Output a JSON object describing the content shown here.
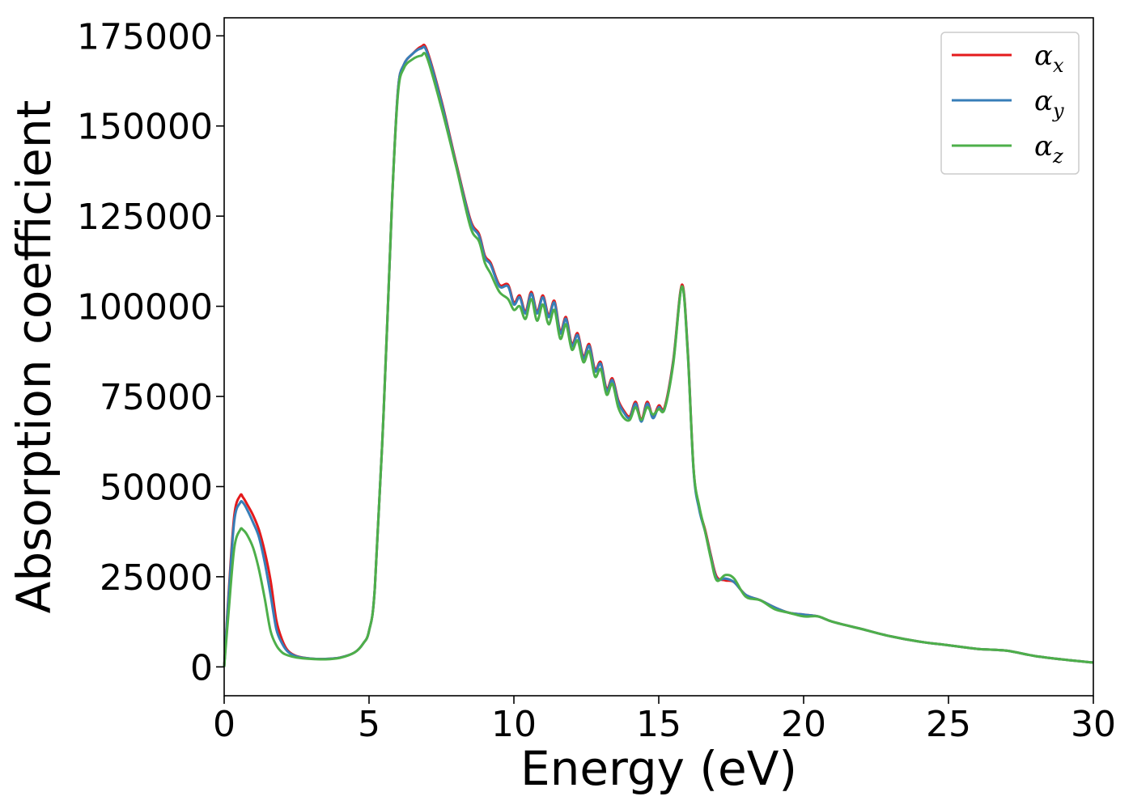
{
  "chart_data": {
    "type": "line",
    "xlabel": "Energy (eV)",
    "ylabel": "Absorption coefficient",
    "xlim": [
      0,
      30
    ],
    "ylim": [
      -8000,
      180000
    ],
    "xticks": [
      0,
      5,
      10,
      15,
      20,
      25,
      30
    ],
    "xtick_labels": [
      "0",
      "5",
      "10",
      "15",
      "20",
      "25",
      "30"
    ],
    "yticks": [
      0,
      25000,
      50000,
      75000,
      100000,
      125000,
      150000,
      175000
    ],
    "ytick_labels": [
      "0",
      "25000",
      "50000",
      "75000",
      "100000",
      "125000",
      "150000",
      "175000"
    ],
    "grid": false,
    "legend_position": "top-right",
    "series": [
      {
        "name": "α",
        "subscript": "x",
        "color": "#e41a1c",
        "x": [
          0,
          0.15,
          0.35,
          0.55,
          0.65,
          0.8,
          1.0,
          1.2,
          1.4,
          1.6,
          1.8,
          2.0,
          2.2,
          2.5,
          3.0,
          3.5,
          4.0,
          4.5,
          4.8,
          5.0,
          5.2,
          5.5,
          5.8,
          6.0,
          6.2,
          6.5,
          6.8,
          7.0,
          7.5,
          8.0,
          8.5,
          8.8,
          9.0,
          9.2,
          9.5,
          9.8,
          10.0,
          10.2,
          10.4,
          10.6,
          10.8,
          11.0,
          11.2,
          11.4,
          11.6,
          11.8,
          12.0,
          12.2,
          12.4,
          12.6,
          12.8,
          13.0,
          13.2,
          13.4,
          13.6,
          13.8,
          14.0,
          14.2,
          14.4,
          14.6,
          14.8,
          15.0,
          15.2,
          15.5,
          15.8,
          16.0,
          16.2,
          16.4,
          16.6,
          16.8,
          17.0,
          17.3,
          17.6,
          18.0,
          18.5,
          19.0,
          19.5,
          20.0,
          20.5,
          21.0,
          22.0,
          23.0,
          24.0,
          25.0,
          26.0,
          27.0,
          28.0,
          29.0,
          30.0
        ],
        "y": [
          0,
          20000,
          42000,
          47500,
          47000,
          45000,
          42000,
          38000,
          32000,
          24000,
          13000,
          7500,
          4500,
          3000,
          2300,
          2200,
          2600,
          4000,
          6500,
          10000,
          22000,
          70000,
          130000,
          160000,
          167000,
          170000,
          172000,
          171000,
          157000,
          140000,
          124000,
          120000,
          114000,
          112000,
          106000,
          106000,
          101000,
          103000,
          98500,
          104000,
          98500,
          103000,
          97500,
          101500,
          93000,
          97000,
          89500,
          92500,
          86000,
          89500,
          82500,
          84500,
          77000,
          80000,
          74000,
          71000,
          69500,
          73500,
          68500,
          73500,
          69500,
          72500,
          72000,
          85000,
          106000,
          88000,
          55000,
          44000,
          38000,
          31000,
          25000,
          24000,
          23500,
          20000,
          18500,
          16500,
          15000,
          14500,
          14000,
          12500,
          10500,
          8500,
          7000,
          6000,
          5000,
          4500,
          3000,
          2000,
          1200
        ]
      },
      {
        "name": "α",
        "subscript": "y",
        "color": "#377eb8",
        "x": [
          0,
          0.15,
          0.35,
          0.55,
          0.65,
          0.8,
          1.0,
          1.2,
          1.4,
          1.6,
          1.8,
          2.0,
          2.2,
          2.5,
          3.0,
          3.5,
          4.0,
          4.5,
          4.8,
          5.0,
          5.2,
          5.5,
          5.8,
          6.0,
          6.2,
          6.5,
          6.8,
          7.0,
          7.5,
          8.0,
          8.5,
          8.8,
          9.0,
          9.2,
          9.5,
          9.8,
          10.0,
          10.2,
          10.4,
          10.6,
          10.8,
          11.0,
          11.2,
          11.4,
          11.6,
          11.8,
          12.0,
          12.2,
          12.4,
          12.6,
          12.8,
          13.0,
          13.2,
          13.4,
          13.6,
          13.8,
          14.0,
          14.2,
          14.4,
          14.6,
          14.8,
          15.0,
          15.2,
          15.5,
          15.8,
          16.0,
          16.2,
          16.4,
          16.6,
          16.8,
          17.0,
          17.3,
          17.6,
          18.0,
          18.5,
          19.0,
          19.5,
          20.0,
          20.5,
          21.0,
          22.0,
          23.0,
          24.0,
          25.0,
          26.0,
          27.0,
          28.0,
          29.0,
          30.0
        ],
        "y": [
          0,
          19000,
          40500,
          45500,
          45500,
          43500,
          40000,
          36000,
          29000,
          20000,
          10500,
          6500,
          4200,
          2900,
          2300,
          2200,
          2600,
          4000,
          6500,
          10000,
          22000,
          70000,
          130000,
          160000,
          167000,
          170000,
          171500,
          170500,
          156500,
          139500,
          123500,
          119500,
          113500,
          111500,
          105500,
          105500,
          100500,
          102500,
          98000,
          103500,
          98000,
          102500,
          97000,
          101000,
          92500,
          96500,
          89000,
          92000,
          85500,
          89000,
          82000,
          84000,
          76500,
          79500,
          73500,
          70500,
          69000,
          73000,
          68000,
          73000,
          69000,
          72000,
          71500,
          84500,
          105500,
          87500,
          54500,
          43500,
          37500,
          30500,
          24500,
          24500,
          23500,
          20000,
          18500,
          16500,
          15000,
          14500,
          14000,
          12500,
          10500,
          8500,
          7000,
          6000,
          5000,
          4500,
          3000,
          2000,
          1200
        ]
      },
      {
        "name": "α",
        "subscript": "z",
        "color": "#4daf4a",
        "x": [
          0,
          0.15,
          0.35,
          0.55,
          0.65,
          0.8,
          1.0,
          1.2,
          1.4,
          1.6,
          1.8,
          2.0,
          2.2,
          2.5,
          3.0,
          3.5,
          4.0,
          4.5,
          4.8,
          5.0,
          5.2,
          5.5,
          5.8,
          6.0,
          6.2,
          6.5,
          6.8,
          7.0,
          7.5,
          8.0,
          8.5,
          8.8,
          9.0,
          9.2,
          9.5,
          9.8,
          10.0,
          10.2,
          10.4,
          10.6,
          10.8,
          11.0,
          11.2,
          11.4,
          11.6,
          11.8,
          12.0,
          12.2,
          12.4,
          12.6,
          12.8,
          13.0,
          13.2,
          13.4,
          13.6,
          13.8,
          14.0,
          14.2,
          14.4,
          14.6,
          14.8,
          15.0,
          15.2,
          15.5,
          15.8,
          16.0,
          16.2,
          16.4,
          16.6,
          16.8,
          17.0,
          17.3,
          17.6,
          18.0,
          18.5,
          19.0,
          19.5,
          20.0,
          20.5,
          21.0,
          22.0,
          23.0,
          24.0,
          25.0,
          26.0,
          27.0,
          28.0,
          29.0,
          30.0
        ],
        "y": [
          0,
          15000,
          33000,
          38000,
          38000,
          36500,
          33000,
          27000,
          19000,
          10000,
          6000,
          4000,
          3200,
          2600,
          2200,
          2100,
          2500,
          4000,
          6500,
          10000,
          22000,
          70000,
          130000,
          159000,
          166000,
          168500,
          169500,
          169000,
          155000,
          139000,
          122000,
          118000,
          112000,
          109000,
          104000,
          102000,
          99000,
          100000,
          96500,
          102000,
          96000,
          100500,
          95000,
          99000,
          91000,
          95000,
          88000,
          90500,
          84500,
          87500,
          80500,
          82500,
          75500,
          78500,
          72000,
          69000,
          68500,
          72000,
          68500,
          72000,
          70000,
          71500,
          71500,
          84000,
          105500,
          87000,
          55000,
          44500,
          37500,
          30000,
          24000,
          25500,
          24500,
          19500,
          18500,
          16000,
          15000,
          14000,
          14000,
          12500,
          10500,
          8500,
          7000,
          6000,
          5000,
          4500,
          3000,
          2000,
          1200
        ]
      }
    ]
  }
}
